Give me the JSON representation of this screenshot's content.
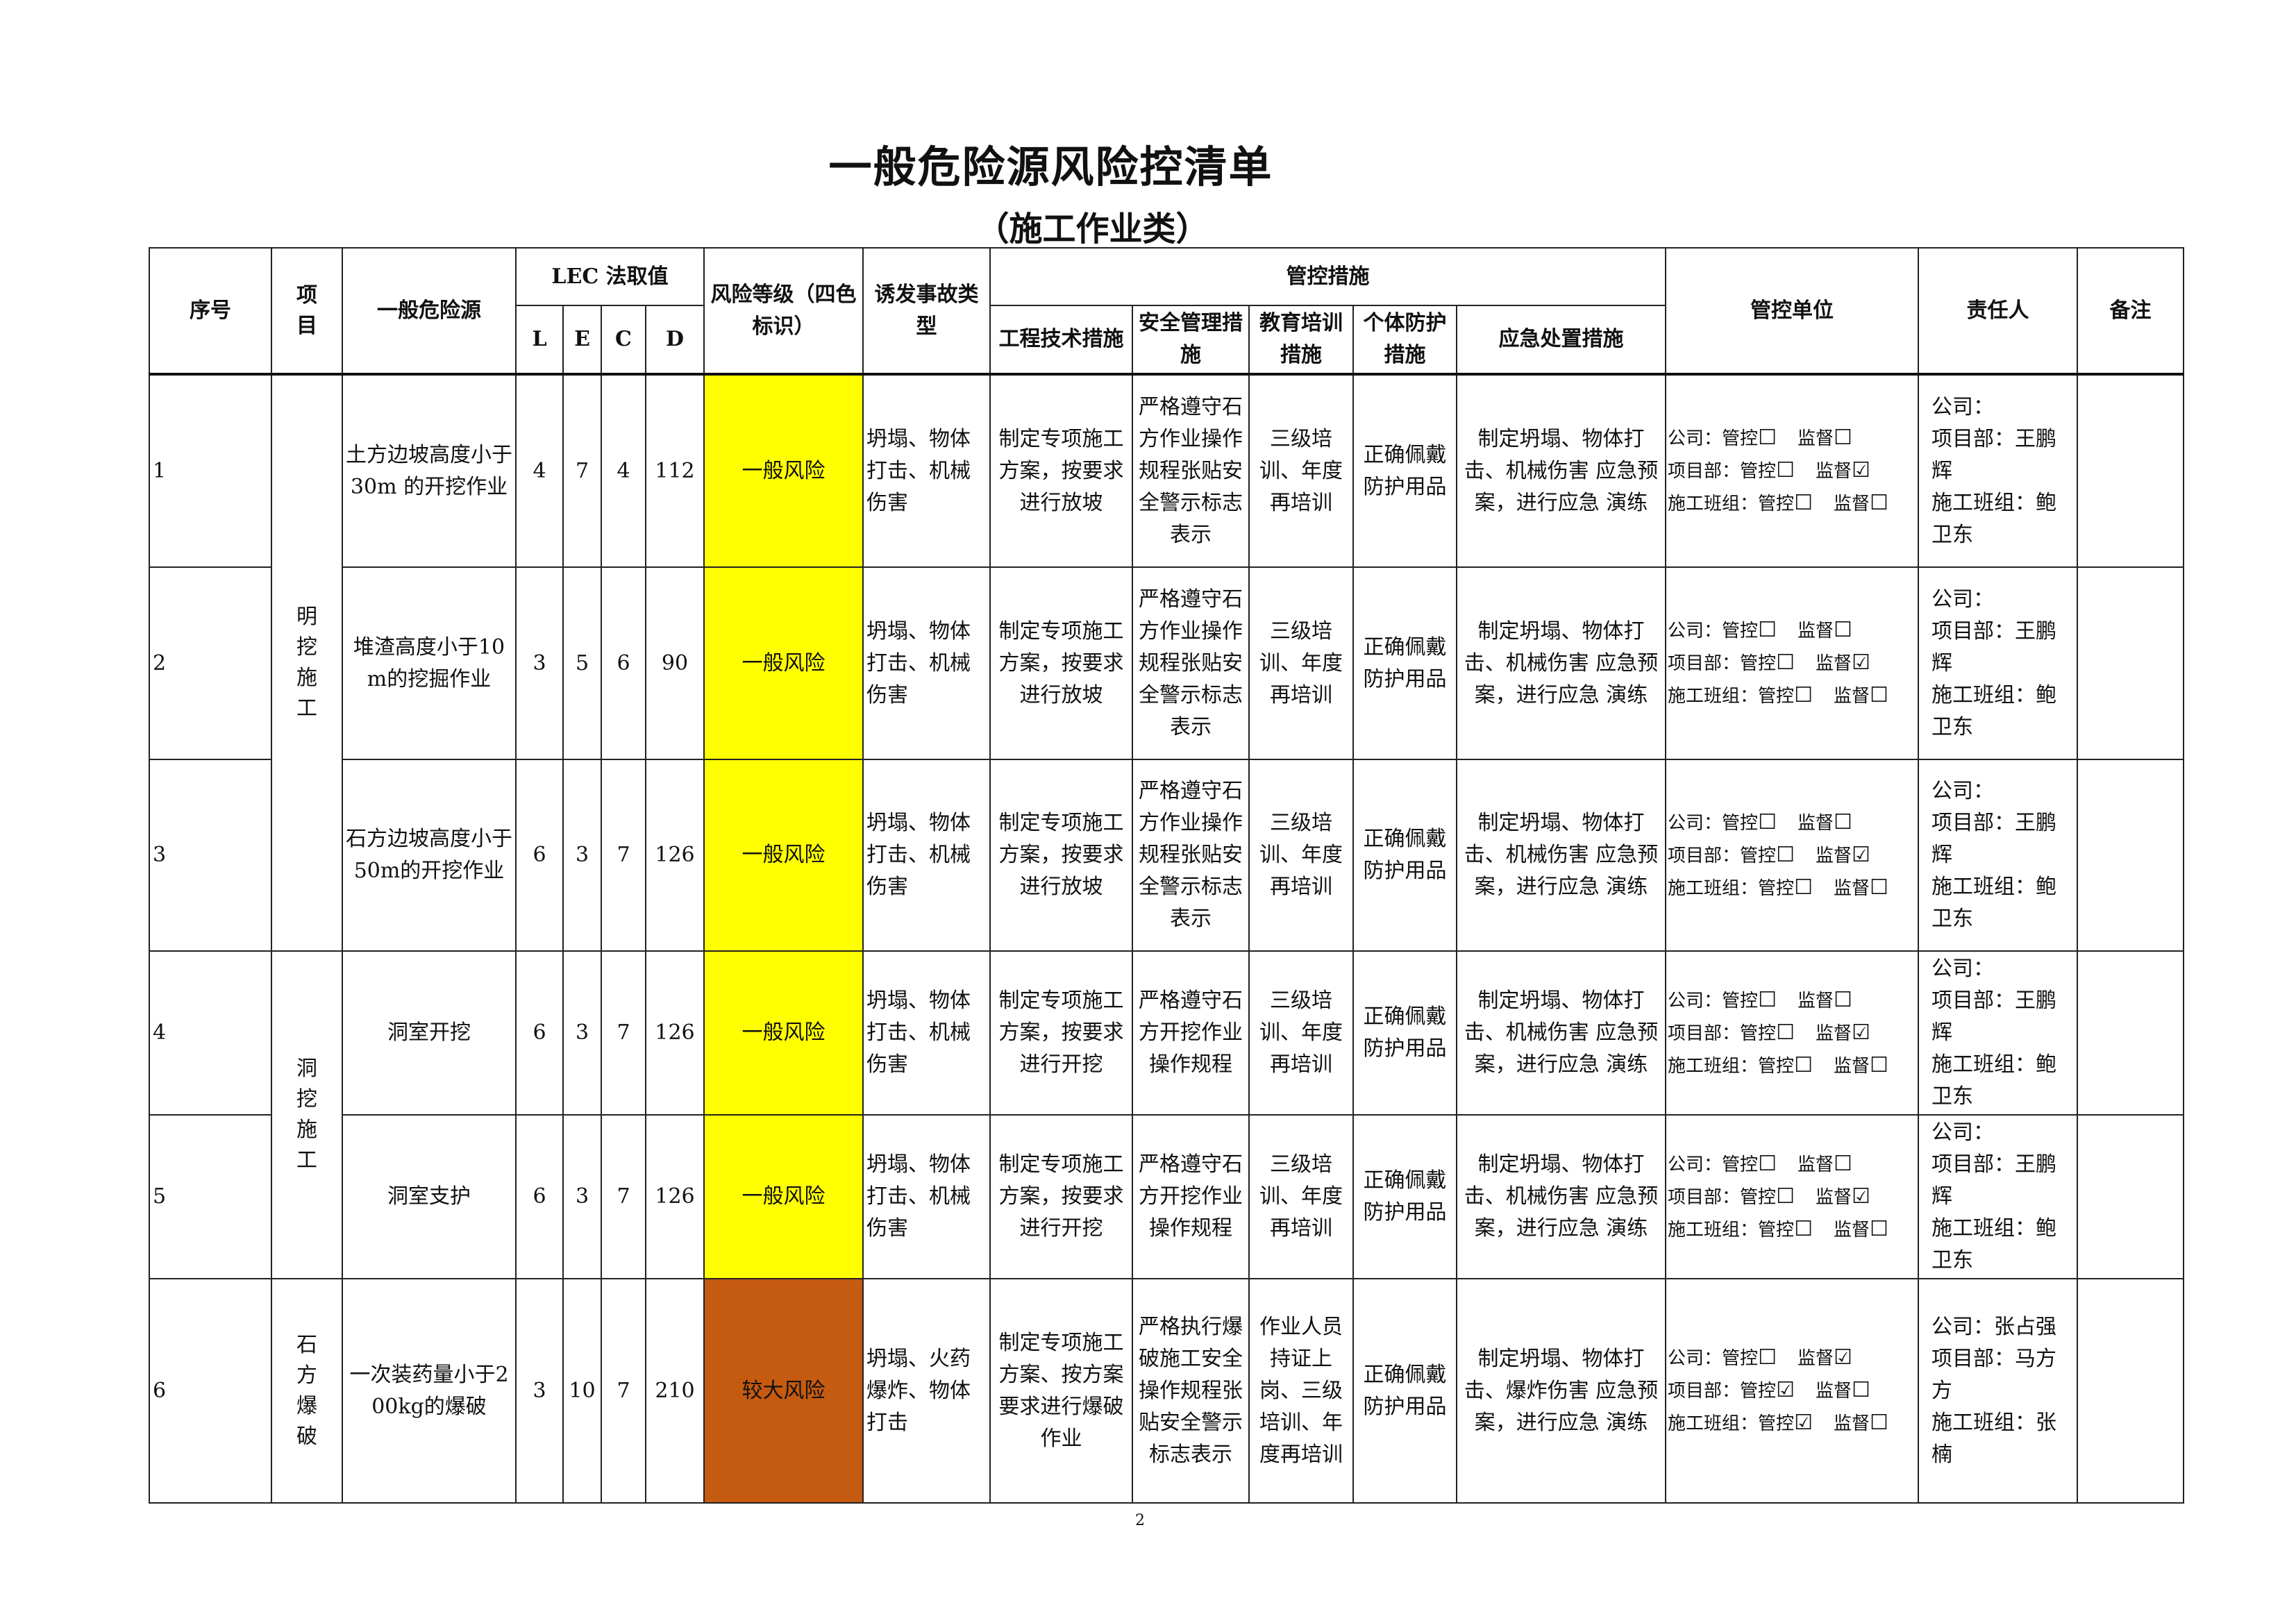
{
  "title": "一般危险源风险控清单",
  "subtitle": "（施工作业类）",
  "page_number": "2",
  "colors": {
    "general_risk": "#ffff00",
    "major_risk": "#c55a11"
  },
  "headers": {
    "seq": "序号",
    "project": "项目",
    "hazard": "一般危险源",
    "lec": "LEC 法取值",
    "L": "L",
    "E": "E",
    "C": "C",
    "D": "D",
    "risk_level": "风险等级（四色标识）",
    "accident": "诱发事故类型",
    "measures": "管控措施",
    "engineering": "工程技术措施",
    "safety": "安全管理措施",
    "education": "教育培训措施",
    "ppe": "个体防护措施",
    "emergency": "应急处置措施",
    "unit": "管控单位",
    "responsible": "责任人",
    "remark": "备注"
  },
  "mu_labels": {
    "company": "公司：",
    "project_dept": "项目部：",
    "team": "施工班组：",
    "control": "管控",
    "supervise": "监督"
  },
  "groups": [
    {
      "name": "明挖施工",
      "rows": 3
    },
    {
      "name": "洞挖施工",
      "rows": 2
    },
    {
      "name": "石方爆破",
      "rows": 1
    }
  ],
  "rows": [
    {
      "seq": "1",
      "hazard": "土方边坡高度小于30m 的开挖作业",
      "L": "4",
      "E": "7",
      "C": "4",
      "D": "112",
      "risk": "一般风险",
      "risk_color": "yellow",
      "accident": "坍塌、物体打击、机械伤害",
      "engineering": "制定专项施工方案，按要求进行放坡",
      "safety": "严格遵守石方作业操作规程张贴安全警示标志表示",
      "education": "三级培训、年度再培训",
      "ppe": "正确佩戴防护用品",
      "emergency": "制定坍塌、物体打击、机械伤害 应急预案，进行应急 演练",
      "unit": {
        "company": [
          false,
          false
        ],
        "project_dept": [
          false,
          true
        ],
        "team": [
          false,
          false
        ]
      },
      "responsible": [
        "公司：",
        "项目部：王鹏辉",
        "施工班组：鲍卫东"
      ],
      "remark": ""
    },
    {
      "seq": "2",
      "hazard": "堆渣高度小于10m的挖掘作业",
      "L": "3",
      "E": "5",
      "C": "6",
      "D": "90",
      "risk": "一般风险",
      "risk_color": "yellow",
      "accident": "坍塌、物体打击、机械伤害",
      "engineering": "制定专项施工方案，按要求进行放坡",
      "safety": "严格遵守石方作业操作规程张贴安全警示标志表示",
      "education": "三级培训、年度再培训",
      "ppe": "正确佩戴防护用品",
      "emergency": "制定坍塌、物体打击、机械伤害 应急预案，进行应急 演练",
      "unit": {
        "company": [
          false,
          false
        ],
        "project_dept": [
          false,
          true
        ],
        "team": [
          false,
          false
        ]
      },
      "responsible": [
        "公司：",
        "项目部：王鹏辉",
        "施工班组：鲍卫东"
      ],
      "remark": ""
    },
    {
      "seq": "3",
      "hazard": "石方边坡高度小于50m的开挖作业",
      "L": "6",
      "E": "3",
      "C": "7",
      "D": "126",
      "risk": "一般风险",
      "risk_color": "yellow",
      "accident": "坍塌、物体打击、机械伤害",
      "engineering": "制定专项施工方案，按要求进行放坡",
      "safety": "严格遵守石方作业操作规程张贴安全警示标志表示",
      "education": "三级培训、年度再培训",
      "ppe": "正确佩戴防护用品",
      "emergency": "制定坍塌、物体打击、机械伤害 应急预案，进行应急 演练",
      "unit": {
        "company": [
          false,
          false
        ],
        "project_dept": [
          false,
          true
        ],
        "team": [
          false,
          false
        ]
      },
      "responsible": [
        "公司：",
        "项目部：王鹏辉",
        "施工班组：鲍卫东"
      ],
      "remark": ""
    },
    {
      "seq": "4",
      "hazard": "洞室开挖",
      "L": "6",
      "E": "3",
      "C": "7",
      "D": "126",
      "risk": "一般风险",
      "risk_color": "yellow",
      "accident": "坍塌、物体打击、机械伤害",
      "engineering": "制定专项施工方案，按要求进行开挖",
      "safety": "严格遵守石方开挖作业操作规程",
      "education": "三级培训、年度再培训",
      "ppe": "正确佩戴防护用品",
      "emergency": "制定坍塌、物体打击、机械伤害 应急预案，进行应急 演练",
      "unit": {
        "company": [
          false,
          false
        ],
        "project_dept": [
          false,
          true
        ],
        "team": [
          false,
          false
        ]
      },
      "responsible": [
        "公司：",
        "项目部：王鹏辉",
        "施工班组：鲍卫东"
      ],
      "remark": ""
    },
    {
      "seq": "5",
      "hazard": "洞室支护",
      "L": "6",
      "E": "3",
      "C": "7",
      "D": "126",
      "risk": "一般风险",
      "risk_color": "yellow",
      "accident": "坍塌、物体打击、机械伤害",
      "engineering": "制定专项施工方案，按要求进行开挖",
      "safety": "严格遵守石方开挖作业操作规程",
      "education": "三级培训、年度再培训",
      "ppe": "正确佩戴防护用品",
      "emergency": "制定坍塌、物体打击、机械伤害 应急预案，进行应急 演练",
      "unit": {
        "company": [
          false,
          false
        ],
        "project_dept": [
          false,
          true
        ],
        "team": [
          false,
          false
        ]
      },
      "responsible": [
        "公司：",
        "项目部：王鹏辉",
        "施工班组：鲍卫东"
      ],
      "remark": ""
    },
    {
      "seq": "6",
      "hazard": "一次装药量小于200kg的爆破",
      "L": "3",
      "E": "10",
      "C": "7",
      "D": "210",
      "risk": "较大风险",
      "risk_color": "orange",
      "accident": "坍塌、火药爆炸、物体打击",
      "engineering": "制定专项施工方案、按方案要求进行爆破作业",
      "safety": "严格执行爆破施工安全操作规程张贴安全警示标志表示",
      "education": "作业人员持证上岗、三级培训、年度再培训",
      "ppe": "正确佩戴防护用品",
      "emergency": "制定坍塌、物体打击、爆炸伤害 应急预案，进行应急 演练",
      "unit": {
        "company": [
          false,
          true
        ],
        "project_dept": [
          true,
          false
        ],
        "team": [
          true,
          false
        ]
      },
      "responsible": [
        "公司：张占强",
        "项目部：马方方",
        "施工班组：张楠"
      ],
      "remark": ""
    }
  ]
}
